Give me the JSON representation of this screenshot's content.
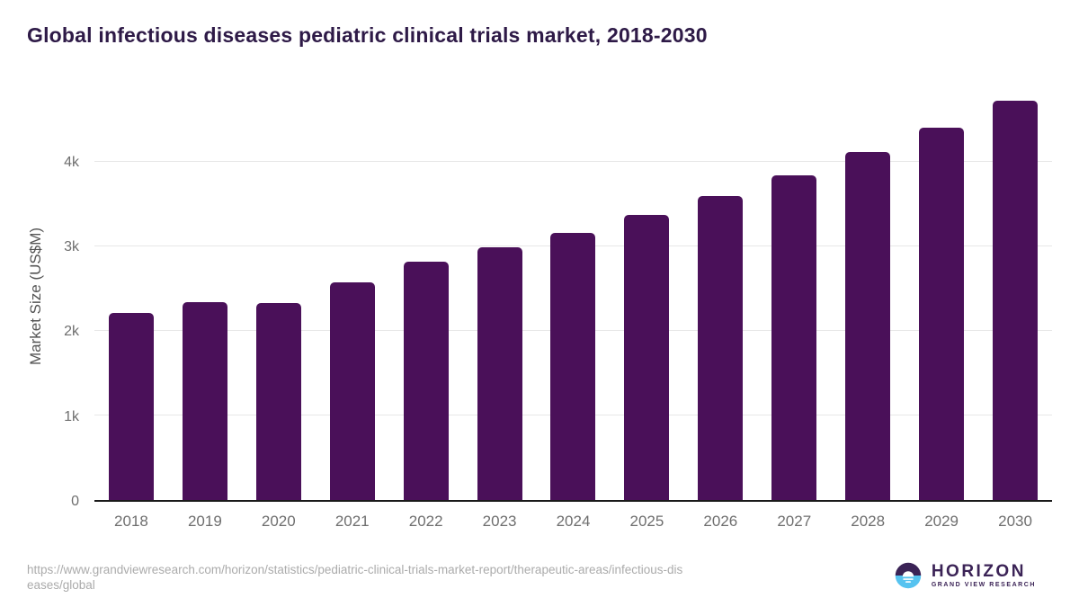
{
  "title": "Global infectious diseases pediatric clinical trials market, 2018-2030",
  "chart_data": {
    "type": "bar",
    "title": "Global infectious diseases pediatric clinical trials market, 2018-2030",
    "categories": [
      "2018",
      "2019",
      "2020",
      "2021",
      "2022",
      "2023",
      "2024",
      "2025",
      "2026",
      "2027",
      "2028",
      "2029",
      "2030"
    ],
    "values": [
      2210,
      2340,
      2330,
      2580,
      2820,
      2990,
      3160,
      3370,
      3600,
      3840,
      4120,
      4410,
      4730
    ],
    "xlabel": "",
    "ylabel": "Market Size (US$M)",
    "ylim": [
      0,
      4854
    ],
    "yticks": [
      {
        "label": "0",
        "value": 0
      },
      {
        "label": "1k",
        "value": 1000
      },
      {
        "label": "2k",
        "value": 2000
      },
      {
        "label": "3k",
        "value": 3000
      },
      {
        "label": "4k",
        "value": 4000
      }
    ],
    "grid": true,
    "legend": false
  },
  "colors": {
    "bar": "#4A1059",
    "title": "#2E1A47",
    "gridline": "#E7E7E7",
    "axis_line": "#1A1A1A",
    "tick_label": "#6E6E6E",
    "axis_title": "#545454",
    "url_text": "#ABABAB",
    "logo_purple": "#3B2356",
    "logo_blue": "#56C3F0"
  },
  "footer": {
    "url_lines": [
      "https://www.grandviewresearch.com/horizon/statistics/pediatric-clinical-trials-market-report/therapeutic-areas/infectious-dis",
      "eases/global"
    ]
  },
  "logo": {
    "name": "HORIZON",
    "subtitle": "GRAND VIEW RESEARCH"
  }
}
